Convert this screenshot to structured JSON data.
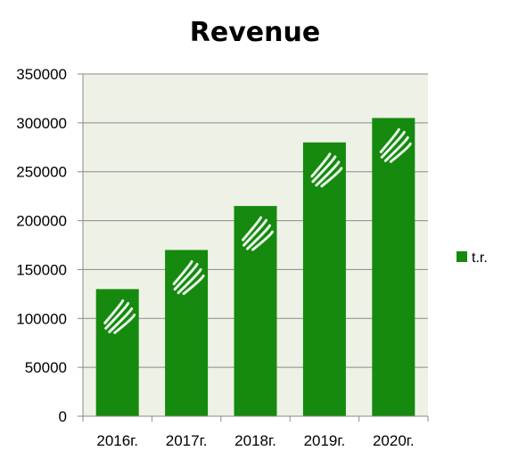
{
  "chart_data": {
    "type": "bar",
    "title": "Revenue",
    "xlabel": "",
    "ylabel": "",
    "categories": [
      "2016г.",
      "2017г.",
      "2018г.",
      "2019г.",
      "2020г."
    ],
    "series": [
      {
        "name": "t.r.",
        "values": [
          130000,
          170000,
          215000,
          280000,
          305000
        ],
        "color": "#158a0e"
      }
    ],
    "ylim": [
      0,
      350000
    ],
    "yticks": [
      0,
      50000,
      100000,
      150000,
      200000,
      250000,
      300000,
      350000
    ],
    "grid": true,
    "legend_position": "right",
    "plot_background": "#eef1e6",
    "bar_mark_icon": "feather-swirl-logo"
  }
}
